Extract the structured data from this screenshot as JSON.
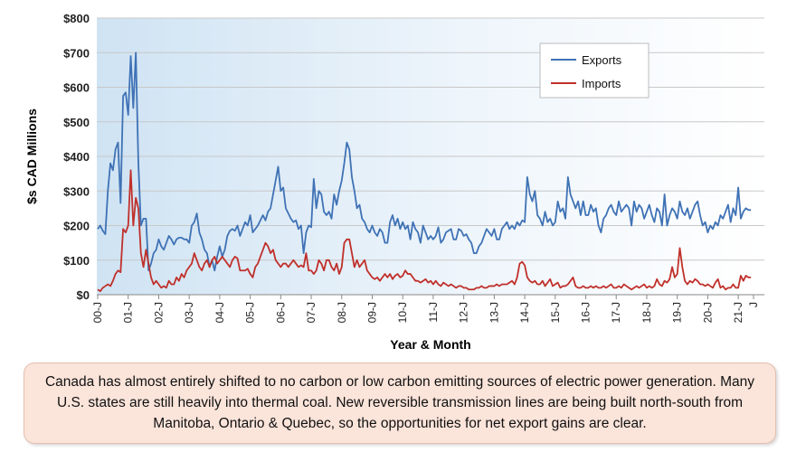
{
  "chart_data": {
    "type": "line",
    "x_label": "Year & Month",
    "y_label": "$s CAD Millions",
    "annotation": "Canada has almost entirely shifted to no carbon or low carbon emitting sources of electric power generation. Many U.S. states are still heavily into thermal coal. New reversible transmission lines are being built north-south from Manitoba, Ontario & Quebec, so the opportunities for net export gains are clear.",
    "ylim": [
      0,
      800
    ],
    "yticks": [
      {
        "value": 0,
        "label": "$0"
      },
      {
        "value": 100,
        "label": "$100"
      },
      {
        "value": 200,
        "label": "$200"
      },
      {
        "value": 300,
        "label": "$300"
      },
      {
        "value": 400,
        "label": "$400"
      },
      {
        "value": 500,
        "label": "$500"
      },
      {
        "value": 600,
        "label": "$600"
      },
      {
        "value": 700,
        "label": "$700"
      },
      {
        "value": 800,
        "label": "$800"
      }
    ],
    "grid": true,
    "legend": "top-right",
    "categories": [
      "00-J",
      null,
      null,
      null,
      null,
      null,
      null,
      null,
      null,
      null,
      null,
      null,
      "01-J",
      null,
      null,
      null,
      null,
      null,
      null,
      null,
      null,
      null,
      null,
      null,
      "02-J",
      null,
      null,
      null,
      null,
      null,
      null,
      null,
      null,
      null,
      null,
      null,
      "03-J",
      null,
      null,
      null,
      null,
      null,
      null,
      null,
      null,
      null,
      null,
      null,
      "04-J",
      null,
      null,
      null,
      null,
      null,
      null,
      null,
      null,
      null,
      null,
      null,
      "05-J",
      null,
      null,
      null,
      null,
      null,
      null,
      null,
      null,
      null,
      null,
      null,
      "06-J",
      null,
      null,
      null,
      null,
      null,
      null,
      null,
      null,
      null,
      null,
      null,
      "07-J",
      null,
      null,
      null,
      null,
      null,
      null,
      null,
      null,
      null,
      null,
      null,
      "08-J",
      null,
      null,
      null,
      null,
      null,
      null,
      null,
      null,
      null,
      null,
      null,
      "09-J",
      null,
      null,
      null,
      null,
      null,
      null,
      null,
      null,
      null,
      null,
      null,
      "10-J",
      null,
      null,
      null,
      null,
      null,
      null,
      null,
      null,
      null,
      null,
      null,
      "11-J",
      null,
      null,
      null,
      null,
      null,
      null,
      null,
      null,
      null,
      null,
      null,
      "12-J",
      null,
      null,
      null,
      null,
      null,
      null,
      null,
      null,
      null,
      null,
      null,
      "13-J",
      null,
      null,
      null,
      null,
      null,
      null,
      null,
      null,
      null,
      null,
      null,
      "14-J",
      null,
      null,
      null,
      null,
      null,
      null,
      null,
      null,
      null,
      null,
      null,
      "15-J",
      null,
      null,
      null,
      null,
      null,
      null,
      null,
      null,
      null,
      null,
      null,
      "16-J",
      null,
      null,
      null,
      null,
      null,
      null,
      null,
      null,
      null,
      null,
      null,
      "17-J",
      null,
      null,
      null,
      null,
      null,
      null,
      null,
      null,
      null,
      null,
      null,
      "18-J",
      null,
      null,
      null,
      null,
      null,
      null,
      null,
      null,
      null,
      null,
      null,
      "19-J",
      null,
      null,
      null,
      null,
      null,
      null,
      null,
      null,
      null,
      null,
      null,
      "20-J",
      null,
      null,
      null,
      null,
      null,
      null,
      null,
      null,
      null,
      null,
      null,
      "21-J",
      null,
      null,
      null,
      null,
      null,
      "J"
    ],
    "series": [
      {
        "name": "Exports",
        "color": "#3f72b5",
        "values": [
          190,
          200,
          185,
          175,
          300,
          380,
          360,
          420,
          440,
          265,
          575,
          585,
          520,
          690,
          540,
          700,
          380,
          200,
          220,
          220,
          70,
          90,
          120,
          130,
          160,
          140,
          130,
          150,
          170,
          160,
          145,
          160,
          165,
          165,
          160,
          160,
          150,
          200,
          210,
          235,
          180,
          160,
          130,
          120,
          80,
          100,
          70,
          110,
          140,
          110,
          130,
          170,
          185,
          190,
          185,
          200,
          170,
          190,
          210,
          200,
          230,
          180,
          190,
          200,
          215,
          230,
          215,
          240,
          250,
          290,
          330,
          370,
          300,
          310,
          250,
          235,
          220,
          210,
          215,
          190,
          200,
          120,
          180,
          200,
          195,
          335,
          250,
          300,
          290,
          240,
          230,
          240,
          220,
          290,
          260,
          300,
          330,
          380,
          440,
          420,
          340,
          300,
          250,
          260,
          220,
          210,
          190,
          180,
          200,
          180,
          170,
          190,
          180,
          150,
          150,
          210,
          230,
          200,
          220,
          190,
          210,
          190,
          200,
          160,
          210,
          190,
          180,
          150,
          200,
          180,
          160,
          170,
          160,
          170,
          195,
          150,
          160,
          180,
          185,
          190,
          160,
          160,
          190,
          185,
          170,
          175,
          160,
          150,
          120,
          120,
          140,
          150,
          170,
          190,
          180,
          170,
          190,
          160,
          160,
          190,
          200,
          210,
          190,
          200,
          190,
          210,
          200,
          215,
          210,
          340,
          290,
          270,
          300,
          230,
          220,
          200,
          240,
          210,
          220,
          200,
          210,
          270,
          240,
          250,
          220,
          340,
          290,
          270,
          250,
          270,
          230,
          270,
          230,
          230,
          260,
          240,
          250,
          200,
          180,
          220,
          230,
          250,
          260,
          240,
          230,
          270,
          240,
          250,
          260,
          250,
          200,
          270,
          240,
          260,
          250,
          220,
          240,
          260,
          230,
          210,
          250,
          240,
          200,
          290,
          200,
          230,
          250,
          240,
          220,
          270,
          240,
          230,
          250,
          220,
          240,
          260,
          270,
          230,
          200,
          210,
          180,
          200,
          190,
          210,
          200,
          230,
          220,
          240,
          260,
          210,
          250,
          230,
          310,
          220,
          240,
          250,
          245,
          245,
          null
        ]
      },
      {
        "name": "Imports",
        "color": "#c0302b",
        "values": [
          15,
          10,
          20,
          25,
          30,
          25,
          40,
          60,
          70,
          65,
          190,
          180,
          200,
          360,
          200,
          280,
          250,
          120,
          80,
          130,
          90,
          50,
          30,
          40,
          30,
          20,
          25,
          20,
          40,
          30,
          30,
          50,
          40,
          60,
          50,
          70,
          80,
          90,
          120,
          100,
          80,
          70,
          90,
          100,
          80,
          100,
          110,
          90,
          100,
          110,
          100,
          90,
          80,
          100,
          110,
          105,
          70,
          70,
          70,
          75,
          60,
          50,
          80,
          90,
          110,
          130,
          150,
          140,
          120,
          130,
          100,
          90,
          80,
          90,
          90,
          80,
          90,
          100,
          90,
          80,
          85,
          80,
          120,
          70,
          70,
          60,
          70,
          100,
          90,
          70,
          100,
          100,
          80,
          70,
          90,
          60,
          80,
          150,
          160,
          160,
          120,
          80,
          100,
          80,
          90,
          100,
          70,
          60,
          50,
          45,
          50,
          40,
          50,
          60,
          50,
          60,
          45,
          55,
          60,
          50,
          55,
          70,
          60,
          60,
          50,
          40,
          40,
          35,
          40,
          45,
          35,
          40,
          30,
          40,
          30,
          25,
          35,
          30,
          25,
          30,
          25,
          20,
          25,
          25,
          20,
          20,
          15,
          15,
          15,
          20,
          20,
          25,
          20,
          20,
          25,
          25,
          25,
          30,
          25,
          30,
          30,
          30,
          35,
          40,
          30,
          50,
          90,
          95,
          85,
          50,
          40,
          35,
          40,
          30,
          30,
          40,
          25,
          35,
          45,
          25,
          30,
          35,
          20,
          25,
          25,
          30,
          40,
          50,
          25,
          20,
          20,
          25,
          20,
          20,
          25,
          20,
          25,
          20,
          20,
          25,
          20,
          25,
          30,
          20,
          20,
          25,
          20,
          30,
          25,
          20,
          15,
          20,
          25,
          20,
          25,
          30,
          20,
          25,
          20,
          25,
          45,
          30,
          25,
          40,
          35,
          45,
          80,
          50,
          60,
          135,
          80,
          40,
          30,
          40,
          35,
          45,
          40,
          30,
          30,
          25,
          30,
          25,
          20,
          35,
          45,
          20,
          25,
          15,
          20,
          20,
          30,
          20,
          20,
          55,
          40,
          55,
          50,
          50,
          null
        ]
      }
    ]
  }
}
